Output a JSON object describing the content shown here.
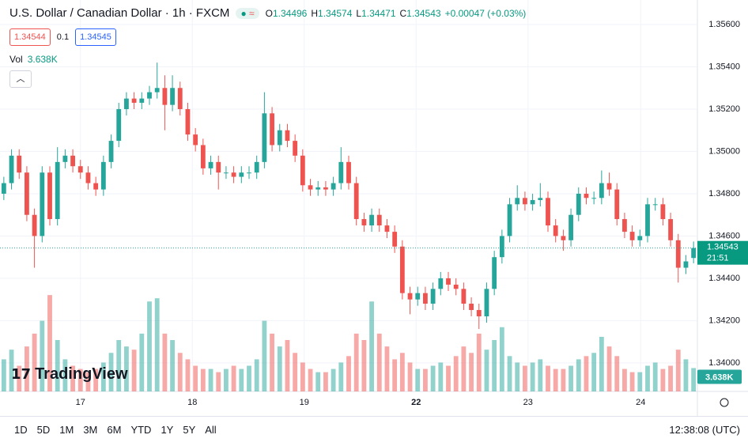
{
  "header": {
    "symbol": "U.S. Dollar / Canadian Dollar · 1h · FXCM",
    "legend": [
      {
        "label": "O",
        "value": "1.34496"
      },
      {
        "label": "H",
        "value": "1.34574"
      },
      {
        "label": "L",
        "value": "1.34471"
      },
      {
        "label": "C",
        "value": "1.34543"
      },
      {
        "label": "",
        "value": "+0.00047 (+0.03%)"
      }
    ],
    "sell": "1.34544",
    "spread": "0.1",
    "buy": "1.34545",
    "vol_label": "Vol",
    "vol_value": "3.638K"
  },
  "logo": "TradingView",
  "chart_data": {
    "type": "candlestick",
    "up_color": "#26a69a",
    "down_color": "#ef5350",
    "grid": true,
    "xlim": [
      -0.5,
      90.5
    ],
    "xticks": [
      {
        "value": 10,
        "label": "17"
      },
      {
        "value": 24.6,
        "label": "18"
      },
      {
        "value": 39.2,
        "label": "19"
      },
      {
        "value": 53.8,
        "label": "22"
      },
      {
        "value": 68.4,
        "label": "23"
      },
      {
        "value": 83.1,
        "label": "24"
      }
    ],
    "ylim": [
      1.33865,
      1.35716
    ],
    "yticks": [
      {
        "value": 1.356,
        "label": "1.35600"
      },
      {
        "value": 1.354,
        "label": "1.35400"
      },
      {
        "value": 1.352,
        "label": "1.35200"
      },
      {
        "value": 1.35,
        "label": "1.35000"
      },
      {
        "value": 1.348,
        "label": "1.34800"
      },
      {
        "value": 1.346,
        "label": "1.34600"
      },
      {
        "value": 1.344,
        "label": "1.34400"
      },
      {
        "value": 1.342,
        "label": "1.34200"
      },
      {
        "value": 1.34,
        "label": "1.34000"
      }
    ],
    "open": [
      1.348,
      1.3485,
      1.3498,
      1.349,
      1.347,
      1.346,
      1.349,
      1.3468,
      1.3495,
      1.3498,
      1.3493,
      1.349,
      1.3485,
      1.3482,
      1.3495,
      1.3505,
      1.352,
      1.3525,
      1.3523,
      1.3525,
      1.3528,
      1.353,
      1.3522,
      1.353,
      1.352,
      1.3508,
      1.3503,
      1.3492,
      1.3495,
      1.349,
      1.349,
      1.3488,
      1.349,
      1.349,
      1.3495,
      1.3518,
      1.3503,
      1.351,
      1.3505,
      1.3498,
      1.3484,
      1.3482,
      1.3483,
      1.3482,
      1.3485,
      1.3495,
      1.3485,
      1.3468,
      1.3465,
      1.347,
      1.3465,
      1.3462,
      1.3455,
      1.3433,
      1.343,
      1.3433,
      1.3428,
      1.3435,
      1.344,
      1.3437,
      1.3435,
      1.3428,
      1.3425,
      1.3422,
      1.3435,
      1.345,
      1.346,
      1.3475,
      1.3478,
      1.3475,
      1.3477,
      1.3478,
      1.3465,
      1.346,
      1.3458,
      1.347,
      1.348,
      1.3478,
      1.3478,
      1.3485,
      1.3482,
      1.3468,
      1.3462,
      1.3458,
      1.346,
      1.3475,
      1.3475,
      1.3468,
      1.3458,
      1.3445,
      1.34496
    ],
    "high": [
      1.3488,
      1.3501,
      1.3501,
      1.3493,
      1.3473,
      1.3493,
      1.3493,
      1.3502,
      1.3501,
      1.3501,
      1.3496,
      1.3493,
      1.3488,
      1.3498,
      1.3508,
      1.3523,
      1.3528,
      1.3528,
      1.3528,
      1.3531,
      1.3542,
      1.3536,
      1.3536,
      1.3533,
      1.3523,
      1.3511,
      1.3506,
      1.3498,
      1.3498,
      1.3493,
      1.3493,
      1.3493,
      1.3493,
      1.3498,
      1.3528,
      1.3521,
      1.3513,
      1.3513,
      1.3508,
      1.3501,
      1.3487,
      1.3486,
      1.3486,
      1.3488,
      1.3502,
      1.3498,
      1.3488,
      1.3471,
      1.3473,
      1.3473,
      1.3468,
      1.3465,
      1.3458,
      1.3436,
      1.3436,
      1.3436,
      1.3438,
      1.3443,
      1.3443,
      1.344,
      1.3438,
      1.3431,
      1.3428,
      1.3438,
      1.3453,
      1.3463,
      1.3478,
      1.3484,
      1.3481,
      1.348,
      1.3485,
      1.3481,
      1.3468,
      1.3463,
      1.3473,
      1.3483,
      1.3483,
      1.3481,
      1.3491,
      1.349,
      1.3485,
      1.3471,
      1.3465,
      1.3463,
      1.3478,
      1.3478,
      1.3478,
      1.3471,
      1.3461,
      1.3451,
      1.34574
    ],
    "low": [
      1.3477,
      1.3482,
      1.3487,
      1.3467,
      1.3445,
      1.3457,
      1.3465,
      1.3465,
      1.3492,
      1.349,
      1.3487,
      1.3482,
      1.3479,
      1.3479,
      1.3492,
      1.3502,
      1.3517,
      1.352,
      1.352,
      1.3522,
      1.3525,
      1.351,
      1.3519,
      1.3517,
      1.3505,
      1.35,
      1.3489,
      1.3489,
      1.3482,
      1.3487,
      1.3485,
      1.3485,
      1.3487,
      1.3487,
      1.3492,
      1.35,
      1.35,
      1.3502,
      1.3495,
      1.3481,
      1.3479,
      1.3479,
      1.3479,
      1.3479,
      1.3482,
      1.3482,
      1.3465,
      1.3462,
      1.3462,
      1.3462,
      1.3459,
      1.3452,
      1.343,
      1.3423,
      1.3427,
      1.3425,
      1.3425,
      1.3432,
      1.3434,
      1.3432,
      1.3425,
      1.3422,
      1.3416,
      1.3419,
      1.3432,
      1.3447,
      1.3457,
      1.3472,
      1.3472,
      1.3472,
      1.3474,
      1.3462,
      1.3457,
      1.3453,
      1.3455,
      1.3467,
      1.3475,
      1.3475,
      1.3475,
      1.3479,
      1.3465,
      1.3459,
      1.3455,
      1.3455,
      1.3457,
      1.3472,
      1.3465,
      1.3455,
      1.3438,
      1.3442,
      1.34471
    ],
    "close": [
      1.3485,
      1.3498,
      1.349,
      1.347,
      1.346,
      1.349,
      1.3468,
      1.3495,
      1.3498,
      1.3493,
      1.349,
      1.3485,
      1.3482,
      1.3495,
      1.3505,
      1.352,
      1.3525,
      1.3523,
      1.3525,
      1.3528,
      1.353,
      1.3522,
      1.353,
      1.352,
      1.3508,
      1.3503,
      1.3492,
      1.3495,
      1.349,
      1.349,
      1.3488,
      1.349,
      1.349,
      1.3495,
      1.3518,
      1.3503,
      1.351,
      1.3505,
      1.3498,
      1.3484,
      1.3482,
      1.3483,
      1.3482,
      1.3485,
      1.3495,
      1.3485,
      1.3468,
      1.3465,
      1.347,
      1.3465,
      1.3462,
      1.3455,
      1.3433,
      1.343,
      1.3433,
      1.3428,
      1.3435,
      1.344,
      1.3437,
      1.3435,
      1.3428,
      1.3425,
      1.3422,
      1.3435,
      1.345,
      1.346,
      1.3475,
      1.3478,
      1.3475,
      1.3477,
      1.3478,
      1.3465,
      1.346,
      1.3458,
      1.347,
      1.348,
      1.3478,
      1.3478,
      1.3485,
      1.3482,
      1.3468,
      1.3462,
      1.3458,
      1.346,
      1.3475,
      1.3475,
      1.3468,
      1.3458,
      1.3445,
      1.3448,
      1.34543
    ],
    "volume": [
      5000,
      6500,
      4000,
      7000,
      9000,
      11000,
      15000,
      8000,
      5000,
      4000,
      3500,
      3000,
      3500,
      4500,
      6000,
      8000,
      7000,
      6500,
      9000,
      14000,
      14500,
      9000,
      8000,
      6000,
      5000,
      4000,
      3500,
      3500,
      3000,
      3500,
      4000,
      3500,
      4000,
      5000,
      11000,
      9000,
      7000,
      8000,
      6000,
      4500,
      3500,
      3000,
      3000,
      3500,
      4500,
      5500,
      9000,
      8000,
      14000,
      9000,
      7000,
      5000,
      6000,
      4500,
      3500,
      3500,
      4000,
      4500,
      4000,
      5500,
      7000,
      6000,
      9000,
      6500,
      8000,
      10000,
      5500,
      4500,
      4000,
      4500,
      5000,
      4000,
      3500,
      3500,
      4000,
      5000,
      5500,
      6000,
      8500,
      7000,
      5500,
      3500,
      3000,
      3000,
      4000,
      4500,
      3500,
      4000,
      6500,
      5000,
      3638
    ],
    "vlim": [
      0,
      16000
    ],
    "last_price_label": "1.34543",
    "countdown": "21:51",
    "last_volume_label": "3.638K"
  },
  "toolbar": {
    "ranges": [
      "1D",
      "5D",
      "1M",
      "3M",
      "6M",
      "YTD",
      "1Y",
      "5Y",
      "All"
    ],
    "clock": "12:38:08 (UTC)"
  }
}
